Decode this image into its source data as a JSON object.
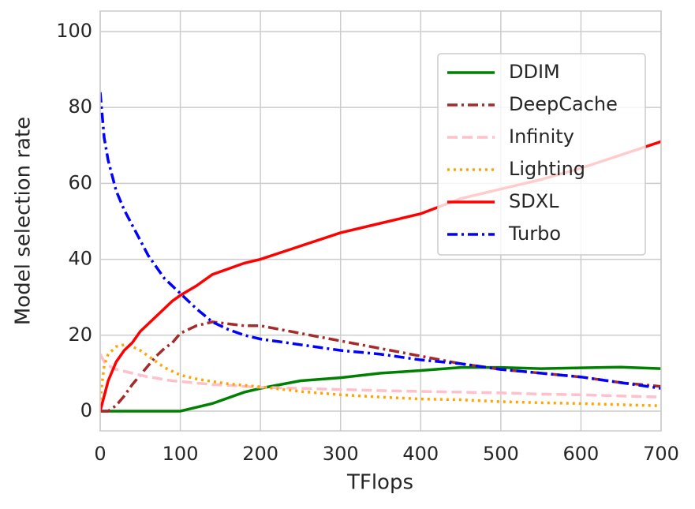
{
  "chart_data": {
    "type": "line",
    "xlabel": "TFlops",
    "ylabel": "Model selection rate",
    "x": [
      0,
      5,
      10,
      20,
      30,
      40,
      50,
      60,
      70,
      80,
      90,
      100,
      120,
      140,
      160,
      180,
      200,
      250,
      300,
      350,
      400,
      450,
      500,
      550,
      600,
      650,
      700
    ],
    "series": [
      {
        "name": "DDIM",
        "color": "#008000",
        "dash": "solid",
        "values": [
          0,
          0,
          0,
          0,
          0,
          0,
          0,
          0,
          0,
          0,
          0,
          0,
          1,
          2,
          3.5,
          5,
          6,
          8,
          8.8,
          10,
          10.7,
          11.5,
          11.5,
          11.2,
          11.4,
          11.6,
          11.2
        ]
      },
      {
        "name": "DeepCache",
        "color": "#a52a2a",
        "dash": "dashdot",
        "values": [
          0,
          0,
          0,
          1.5,
          4,
          7,
          9.5,
          12,
          14.5,
          16.5,
          18,
          20.5,
          22.5,
          23.5,
          23,
          22.5,
          22.5,
          20.5,
          18.5,
          16.5,
          14.5,
          12.5,
          11,
          10,
          9,
          7.5,
          6.5
        ]
      },
      {
        "name": "Infinity",
        "color": "#ffc0cb",
        "dash": "dashed",
        "values": [
          15,
          13,
          12,
          11,
          10.5,
          10,
          9.5,
          9,
          8.7,
          8.3,
          8,
          7.8,
          7.4,
          7,
          6.8,
          6.5,
          6.3,
          6,
          5.7,
          5.4,
          5.2,
          5,
          4.8,
          4.5,
          4.3,
          4,
          3.7
        ]
      },
      {
        "name": "Lighting",
        "color": "#ffa500",
        "dash": "dotted",
        "values": [
          3,
          12,
          15,
          17,
          17.5,
          17,
          16,
          14.5,
          13,
          11.5,
          10.5,
          9.5,
          8.5,
          7.8,
          7.2,
          6.8,
          6.4,
          5.2,
          4.3,
          3.7,
          3.2,
          3,
          2.5,
          2.2,
          2,
          1.7,
          1.4
        ]
      },
      {
        "name": "SDXL",
        "color": "#ff0000",
        "dash": "solid",
        "values": [
          0,
          4,
          8,
          13,
          16,
          18,
          21,
          23,
          25,
          27,
          29,
          30.5,
          33,
          36,
          37.5,
          39,
          40,
          43.5,
          47,
          49.5,
          52,
          56,
          58.5,
          61,
          64,
          67.5,
          71
        ]
      },
      {
        "name": "Turbo",
        "color": "#0000ff",
        "dash": "dashdot",
        "values": [
          84,
          72,
          66,
          58,
          53,
          49,
          45,
          41,
          38,
          35,
          33,
          31,
          27,
          23.5,
          21.5,
          20,
          19,
          17.5,
          16,
          15,
          13.5,
          12.5,
          11,
          10,
          9,
          7.5,
          6
        ]
      }
    ],
    "xlim": [
      0,
      700
    ],
    "xticks": [
      0,
      100,
      200,
      300,
      400,
      500,
      600,
      700
    ],
    "ylim": [
      -5.2,
      105.4
    ],
    "yticks": [
      0,
      20,
      40,
      60,
      80,
      100
    ],
    "grid": true,
    "legend": "upper right"
  }
}
